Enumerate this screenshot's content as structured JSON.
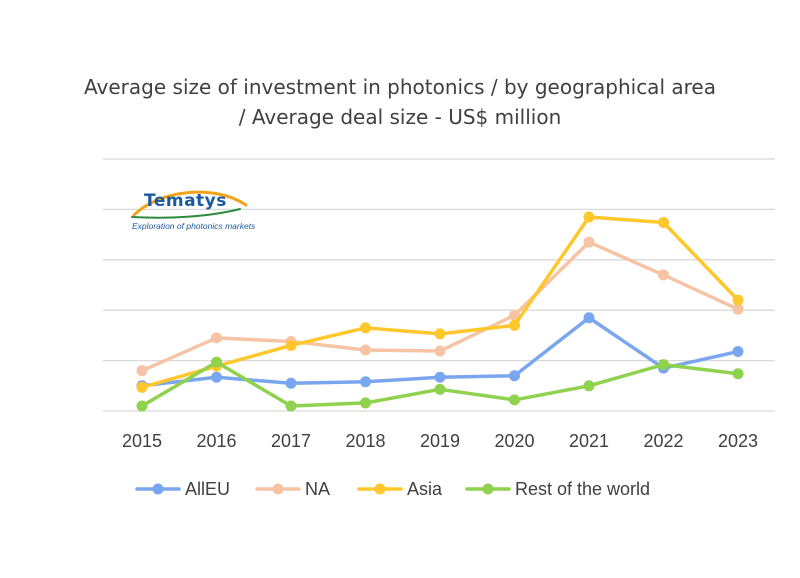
{
  "chart_data": {
    "type": "line",
    "title_line1": "Average size of investment  in photonics / by geographical area",
    "title_line2": "/ Average deal size - US$ million",
    "categories": [
      "2015",
      "2016",
      "2017",
      "2018",
      "2019",
      "2020",
      "2021",
      "2022",
      "2023"
    ],
    "ylim": [
      0,
      5
    ],
    "grid": true,
    "legend_position": "bottom",
    "series": [
      {
        "name": "AllEU",
        "color": "#7aa6ef",
        "values": [
          0.5,
          0.67,
          0.55,
          0.58,
          0.67,
          0.7,
          1.85,
          0.85,
          1.18
        ]
      },
      {
        "name": "NA",
        "color": "#f6c4a4",
        "values": [
          0.8,
          1.45,
          1.38,
          1.21,
          1.19,
          1.9,
          3.35,
          2.7,
          2.02
        ]
      },
      {
        "name": "Asia",
        "color": "#ffc72c",
        "values": [
          0.47,
          0.89,
          1.3,
          1.65,
          1.53,
          1.7,
          3.85,
          3.74,
          2.2
        ]
      },
      {
        "name": "Rest of the world",
        "color": "#8ed24e",
        "values": [
          0.1,
          0.97,
          0.1,
          0.16,
          0.43,
          0.22,
          0.5,
          0.92,
          0.74
        ]
      }
    ]
  },
  "logo": {
    "name": "Tematys",
    "tagline": "Exploration of photonics markets"
  }
}
